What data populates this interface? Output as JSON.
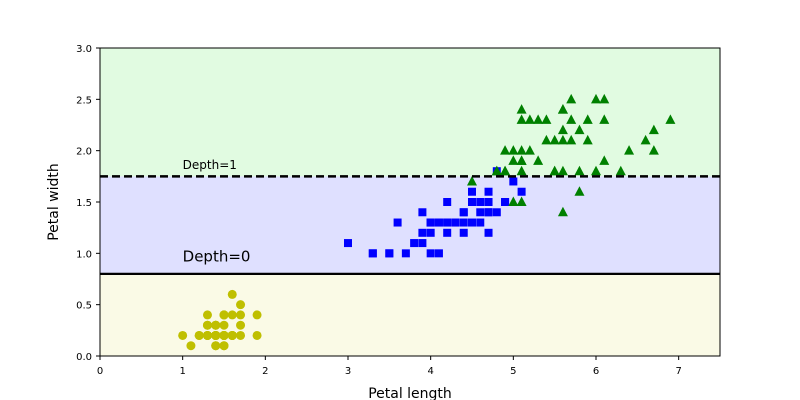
{
  "chart_data": {
    "type": "scatter",
    "title": "",
    "xlabel": "Petal length",
    "ylabel": "Petal width",
    "xlim": [
      0,
      7.5
    ],
    "ylim": [
      0,
      3
    ],
    "xticks": [
      "0",
      "1",
      "2",
      "3",
      "4",
      "5",
      "6",
      "7"
    ],
    "yticks": [
      "0.0",
      "0.5",
      "1.0",
      "1.5",
      "2.0",
      "2.5",
      "3.0"
    ],
    "grid": false,
    "regions": [
      {
        "y_range": [
          0,
          0.8
        ],
        "color": "#fafae6"
      },
      {
        "y_range": [
          0.8,
          1.75
        ],
        "color": "#dfe0ff"
      },
      {
        "y_range": [
          1.75,
          3.0
        ],
        "color": "#e1fbe1"
      }
    ],
    "decision_lines": [
      {
        "y": 0.8,
        "style": "solid",
        "label": "Depth=0",
        "label_x": 1.0,
        "label_y": 0.9
      },
      {
        "y": 1.75,
        "style": "dashed",
        "label": "Depth=1",
        "label_x": 1.0,
        "label_y": 1.8
      }
    ],
    "series": [
      {
        "marker": "circle",
        "color": "#bfbf00",
        "points": [
          [
            1.4,
            0.2
          ],
          [
            1.4,
            0.2
          ],
          [
            1.3,
            0.2
          ],
          [
            1.5,
            0.2
          ],
          [
            1.4,
            0.2
          ],
          [
            1.7,
            0.4
          ],
          [
            1.4,
            0.3
          ],
          [
            1.5,
            0.2
          ],
          [
            1.4,
            0.2
          ],
          [
            1.5,
            0.1
          ],
          [
            1.5,
            0.2
          ],
          [
            1.6,
            0.2
          ],
          [
            1.4,
            0.1
          ],
          [
            1.1,
            0.1
          ],
          [
            1.2,
            0.2
          ],
          [
            1.5,
            0.4
          ],
          [
            1.3,
            0.4
          ],
          [
            1.4,
            0.3
          ],
          [
            1.7,
            0.3
          ],
          [
            1.5,
            0.3
          ],
          [
            1.7,
            0.2
          ],
          [
            1.5,
            0.4
          ],
          [
            1.0,
            0.2
          ],
          [
            1.7,
            0.5
          ],
          [
            1.9,
            0.2
          ],
          [
            1.6,
            0.2
          ],
          [
            1.6,
            0.4
          ],
          [
            1.5,
            0.2
          ],
          [
            1.4,
            0.2
          ],
          [
            1.6,
            0.2
          ],
          [
            1.6,
            0.2
          ],
          [
            1.5,
            0.4
          ],
          [
            1.5,
            0.1
          ],
          [
            1.4,
            0.2
          ],
          [
            1.5,
            0.2
          ],
          [
            1.2,
            0.2
          ],
          [
            1.3,
            0.2
          ],
          [
            1.4,
            0.1
          ],
          [
            1.3,
            0.2
          ],
          [
            1.5,
            0.2
          ],
          [
            1.3,
            0.3
          ],
          [
            1.3,
            0.3
          ],
          [
            1.3,
            0.2
          ],
          [
            1.6,
            0.6
          ],
          [
            1.9,
            0.4
          ],
          [
            1.4,
            0.3
          ],
          [
            1.6,
            0.2
          ],
          [
            1.4,
            0.2
          ],
          [
            1.5,
            0.2
          ],
          [
            1.4,
            0.2
          ]
        ]
      },
      {
        "marker": "square",
        "color": "#0000ff",
        "points": [
          [
            4.7,
            1.4
          ],
          [
            4.5,
            1.5
          ],
          [
            4.9,
            1.5
          ],
          [
            4.0,
            1.3
          ],
          [
            4.6,
            1.5
          ],
          [
            4.5,
            1.3
          ],
          [
            4.7,
            1.6
          ],
          [
            3.3,
            1.0
          ],
          [
            4.6,
            1.3
          ],
          [
            3.9,
            1.4
          ],
          [
            3.5,
            1.0
          ],
          [
            4.2,
            1.5
          ],
          [
            4.0,
            1.0
          ],
          [
            4.7,
            1.4
          ],
          [
            3.6,
            1.3
          ],
          [
            4.4,
            1.4
          ],
          [
            4.5,
            1.5
          ],
          [
            4.1,
            1.0
          ],
          [
            4.5,
            1.5
          ],
          [
            3.9,
            1.1
          ],
          [
            4.8,
            1.8
          ],
          [
            4.0,
            1.3
          ],
          [
            4.9,
            1.5
          ],
          [
            4.7,
            1.2
          ],
          [
            4.3,
            1.3
          ],
          [
            4.4,
            1.4
          ],
          [
            4.8,
            1.4
          ],
          [
            5.0,
            1.7
          ],
          [
            4.5,
            1.5
          ],
          [
            3.5,
            1.0
          ],
          [
            3.8,
            1.1
          ],
          [
            3.7,
            1.0
          ],
          [
            3.9,
            1.2
          ],
          [
            5.1,
            1.6
          ],
          [
            4.5,
            1.5
          ],
          [
            4.5,
            1.6
          ],
          [
            4.7,
            1.5
          ],
          [
            4.4,
            1.3
          ],
          [
            4.1,
            1.3
          ],
          [
            4.0,
            1.3
          ],
          [
            4.4,
            1.2
          ],
          [
            4.6,
            1.4
          ],
          [
            4.0,
            1.2
          ],
          [
            3.3,
            1.0
          ],
          [
            4.2,
            1.3
          ],
          [
            4.2,
            1.2
          ],
          [
            4.2,
            1.3
          ],
          [
            4.3,
            1.3
          ],
          [
            3.0,
            1.1
          ],
          [
            4.1,
            1.3
          ]
        ]
      },
      {
        "marker": "triangle",
        "color": "#008000",
        "points": [
          [
            6.0,
            2.5
          ],
          [
            5.1,
            1.9
          ],
          [
            5.9,
            2.1
          ],
          [
            5.6,
            1.8
          ],
          [
            5.8,
            2.2
          ],
          [
            6.6,
            2.1
          ],
          [
            4.5,
            1.7
          ],
          [
            6.3,
            1.8
          ],
          [
            5.8,
            1.8
          ],
          [
            6.1,
            2.5
          ],
          [
            5.1,
            2.0
          ],
          [
            5.3,
            1.9
          ],
          [
            5.5,
            2.1
          ],
          [
            5.0,
            2.0
          ],
          [
            5.1,
            2.4
          ],
          [
            5.3,
            2.3
          ],
          [
            5.5,
            1.8
          ],
          [
            6.7,
            2.2
          ],
          [
            6.9,
            2.3
          ],
          [
            5.0,
            1.5
          ],
          [
            5.7,
            2.3
          ],
          [
            4.9,
            2.0
          ],
          [
            6.7,
            2.0
          ],
          [
            4.9,
            1.8
          ],
          [
            5.7,
            2.1
          ],
          [
            6.0,
            1.8
          ],
          [
            4.8,
            1.8
          ],
          [
            4.9,
            1.8
          ],
          [
            5.6,
            2.1
          ],
          [
            5.8,
            1.6
          ],
          [
            6.1,
            1.9
          ],
          [
            6.4,
            2.0
          ],
          [
            5.6,
            2.2
          ],
          [
            5.1,
            1.5
          ],
          [
            5.6,
            1.4
          ],
          [
            6.1,
            2.3
          ],
          [
            5.6,
            2.4
          ],
          [
            5.5,
            1.8
          ],
          [
            4.8,
            1.8
          ],
          [
            5.4,
            2.1
          ],
          [
            5.6,
            2.4
          ],
          [
            5.1,
            2.3
          ],
          [
            5.1,
            1.9
          ],
          [
            5.9,
            2.3
          ],
          [
            5.7,
            2.5
          ],
          [
            5.2,
            2.3
          ],
          [
            5.0,
            1.9
          ],
          [
            5.2,
            2.0
          ],
          [
            5.4,
            2.3
          ],
          [
            5.1,
            1.8
          ]
        ]
      }
    ]
  }
}
